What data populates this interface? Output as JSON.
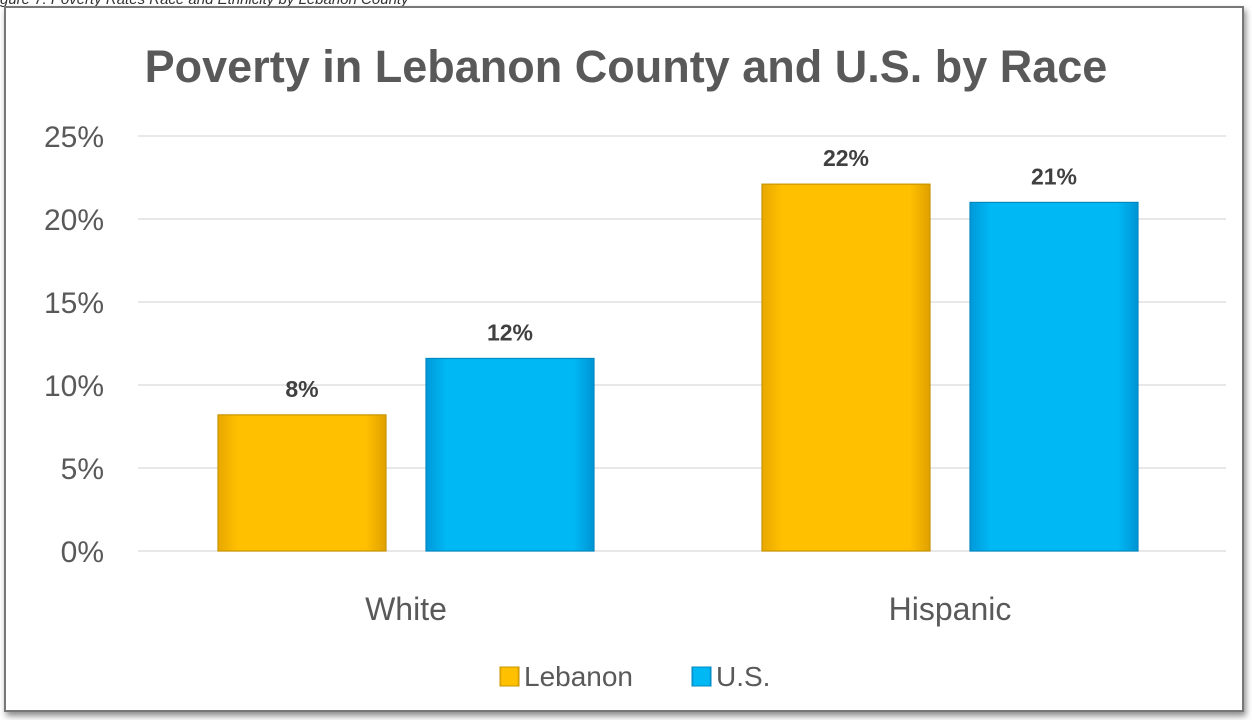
{
  "caption": "gure 7. Poverty Rates Race and Ethnicity by Lebanon County",
  "colors": {
    "lebanon": "#FFC000",
    "us": "#00B0F0",
    "grid": "#D9D9D9",
    "text": "#595959"
  },
  "chart_data": {
    "type": "bar",
    "title": "Poverty in Lebanon County and U.S. by Race",
    "categories": [
      "White",
      "Hispanic"
    ],
    "series": [
      {
        "name": "Lebanon",
        "values": [
          8.2,
          22.1
        ],
        "labels": [
          "8%",
          "22%"
        ]
      },
      {
        "name": "U.S.",
        "values": [
          11.6,
          21.0
        ],
        "labels": [
          "12%",
          "21%"
        ]
      }
    ],
    "ylim": [
      0,
      25
    ],
    "yticks": [
      0,
      5,
      10,
      15,
      20,
      25
    ],
    "ytick_labels": [
      "0%",
      "5%",
      "10%",
      "15%",
      "20%",
      "25%"
    ],
    "grid": true,
    "legend": "bottom"
  }
}
